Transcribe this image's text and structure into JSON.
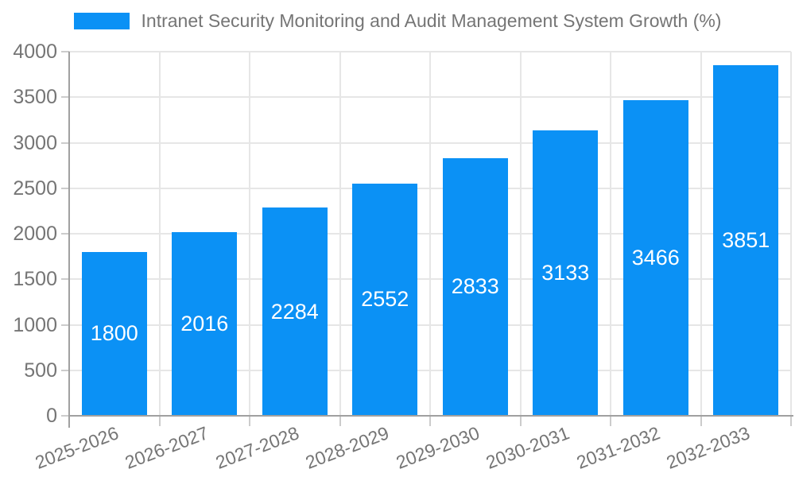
{
  "chart_data": {
    "type": "bar",
    "title": "Intranet Security Monitoring and Audit Management System Growth (%)",
    "categories": [
      "2025-2026",
      "2026-2027",
      "2027-2028",
      "2028-2029",
      "2029-2030",
      "2030-2031",
      "2031-2032",
      "2032-2033"
    ],
    "values": [
      1800,
      2016,
      2284,
      2552,
      2833,
      3133,
      3466,
      3851
    ],
    "value_labels": [
      "1800",
      "2016",
      "2284",
      "2552",
      "2833",
      "3133",
      "3466",
      "3851"
    ],
    "xlabel": "",
    "ylabel": "",
    "ylim": [
      0,
      4000
    ],
    "yticks": [
      0,
      500,
      1000,
      1500,
      2000,
      2500,
      3000,
      3500,
      4000
    ],
    "grid": true,
    "legend_position": "top",
    "colors": {
      "bar": "#0b91f5",
      "bar_value_text": "#ffffff",
      "axis": "#a0a0a0",
      "grid": "#e6e6e6",
      "tick": "#cccccc",
      "label_text": "#757575"
    }
  }
}
